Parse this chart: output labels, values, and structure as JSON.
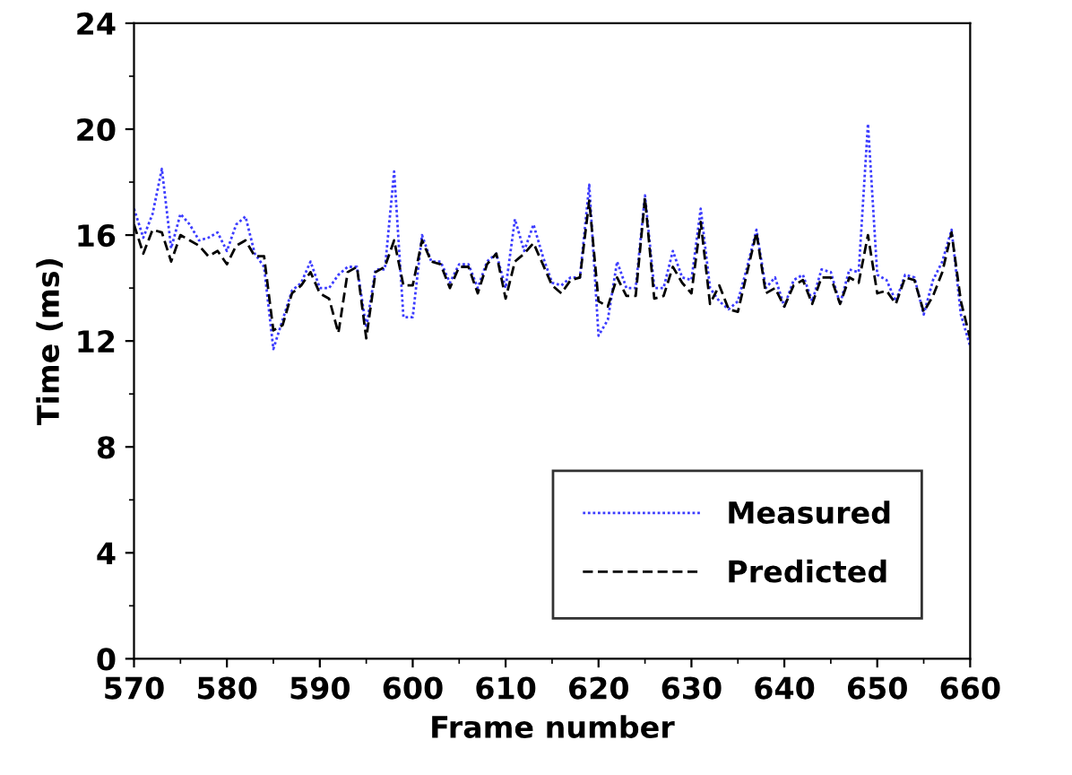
{
  "chart_data": {
    "type": "line",
    "xlabel": "Frame number",
    "ylabel": "Time (ms)",
    "x": [
      570,
      571,
      572,
      573,
      574,
      575,
      576,
      577,
      578,
      579,
      580,
      581,
      582,
      583,
      584,
      585,
      586,
      587,
      588,
      589,
      590,
      591,
      592,
      593,
      594,
      595,
      596,
      597,
      598,
      599,
      600,
      601,
      602,
      603,
      604,
      605,
      606,
      607,
      608,
      609,
      610,
      611,
      612,
      613,
      614,
      615,
      616,
      617,
      618,
      619,
      620,
      621,
      622,
      623,
      624,
      625,
      626,
      627,
      628,
      629,
      630,
      631,
      632,
      633,
      634,
      635,
      636,
      637,
      638,
      639,
      640,
      641,
      642,
      643,
      644,
      645,
      646,
      647,
      648,
      649,
      650,
      651,
      652,
      653,
      654,
      655,
      656,
      657,
      658,
      659,
      660
    ],
    "series": [
      {
        "name": "Measured",
        "color": "#3c3cff",
        "line_style": "dotted",
        "values": [
          17.0,
          15.9,
          16.8,
          18.5,
          15.5,
          16.8,
          16.4,
          15.8,
          15.9,
          16.1,
          15.4,
          16.4,
          16.7,
          15.3,
          14.8,
          11.7,
          12.8,
          13.9,
          14.2,
          15.0,
          14.0,
          14.0,
          14.5,
          14.8,
          14.8,
          12.5,
          14.7,
          14.7,
          18.4,
          12.9,
          12.9,
          16.0,
          15.0,
          15.0,
          14.2,
          14.9,
          14.9,
          14.0,
          15.0,
          15.3,
          14.0,
          16.6,
          15.4,
          16.4,
          15.2,
          14.2,
          14.1,
          14.4,
          14.4,
          17.9,
          12.2,
          12.8,
          15.0,
          14.0,
          14.0,
          17.5,
          14.0,
          14.0,
          15.4,
          14.4,
          14.3,
          17.0,
          14.0,
          13.5,
          13.2,
          13.5,
          14.8,
          16.2,
          14.0,
          14.4,
          13.3,
          14.3,
          14.5,
          13.5,
          14.7,
          14.6,
          13.4,
          14.7,
          14.6,
          20.2,
          14.5,
          14.3,
          13.5,
          14.5,
          14.4,
          13.0,
          14.3,
          15.0,
          16.2,
          13.0,
          11.8
        ]
      },
      {
        "name": "Predicted",
        "color": "#000000",
        "line_style": "dashed",
        "values": [
          16.4,
          15.3,
          16.2,
          16.1,
          15.0,
          16.0,
          15.8,
          15.6,
          15.2,
          15.4,
          14.9,
          15.6,
          15.8,
          15.2,
          15.2,
          12.4,
          12.6,
          13.8,
          14.1,
          14.6,
          13.8,
          13.6,
          12.3,
          14.6,
          14.8,
          12.1,
          14.6,
          14.8,
          15.8,
          14.1,
          14.1,
          15.8,
          15.0,
          14.9,
          14.0,
          14.8,
          14.8,
          13.8,
          14.9,
          15.3,
          13.6,
          15.0,
          15.3,
          15.7,
          14.9,
          14.1,
          13.8,
          14.3,
          14.4,
          17.3,
          13.5,
          13.3,
          14.4,
          13.7,
          13.7,
          17.4,
          13.6,
          13.7,
          14.8,
          14.2,
          13.8,
          16.5,
          13.4,
          14.1,
          13.2,
          13.1,
          14.6,
          16.1,
          13.8,
          14.0,
          13.3,
          14.1,
          14.3,
          13.4,
          14.4,
          14.4,
          13.4,
          14.4,
          14.2,
          16.0,
          13.8,
          13.9,
          13.4,
          14.4,
          14.3,
          13.1,
          13.7,
          14.6,
          16.1,
          13.5,
          12.1
        ]
      }
    ],
    "xlim": [
      570,
      660
    ],
    "xticks": [
      570,
      580,
      590,
      600,
      610,
      620,
      630,
      640,
      650,
      660
    ],
    "ylim": [
      0,
      24
    ],
    "yticks": [
      0,
      4,
      8,
      12,
      16,
      20,
      24
    ],
    "grid": false,
    "legend": "lower right",
    "marker": "none"
  }
}
